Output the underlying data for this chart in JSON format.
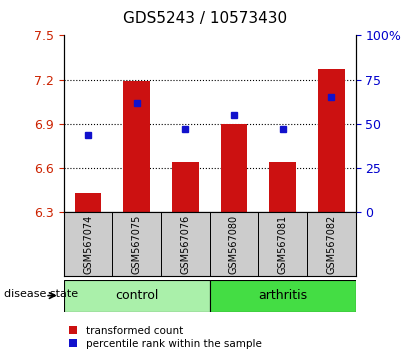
{
  "title": "GDS5243 / 10573430",
  "samples": [
    "GSM567074",
    "GSM567075",
    "GSM567076",
    "GSM567080",
    "GSM567081",
    "GSM567082"
  ],
  "transformed_count": [
    6.43,
    7.19,
    6.64,
    6.9,
    6.64,
    7.27
  ],
  "percentile_rank": [
    44,
    62,
    47,
    55,
    47,
    65
  ],
  "bar_color": "#cc1111",
  "dot_color": "#1111cc",
  "ylim_left": [
    6.3,
    7.5
  ],
  "ylim_right": [
    0,
    100
  ],
  "yticks_left": [
    6.3,
    6.6,
    6.9,
    7.2,
    7.5
  ],
  "yticks_right": [
    0,
    25,
    50,
    75,
    100
  ],
  "ytick_labels_right": [
    "0",
    "25",
    "50",
    "75",
    "100%"
  ],
  "grid_yticks": [
    6.6,
    6.9,
    7.2
  ],
  "groups": [
    {
      "label": "control",
      "samples": [
        0,
        1,
        2
      ],
      "color": "#aaf0aa"
    },
    {
      "label": "arthritis",
      "samples": [
        3,
        4,
        5
      ],
      "color": "#44dd44"
    }
  ],
  "disease_state_label": "disease state",
  "legend_items": [
    {
      "label": "transformed count",
      "color": "#cc1111"
    },
    {
      "label": "percentile rank within the sample",
      "color": "#1111cc"
    }
  ],
  "bar_bottom": 6.3,
  "bar_width": 0.55,
  "tick_label_color_left": "#cc2200",
  "tick_label_color_right": "#0000cc",
  "sample_box_color": "#cccccc",
  "sample_label_fontsize": 7,
  "group_label_fontsize": 9,
  "title_fontsize": 11,
  "legend_fontsize": 7.5
}
